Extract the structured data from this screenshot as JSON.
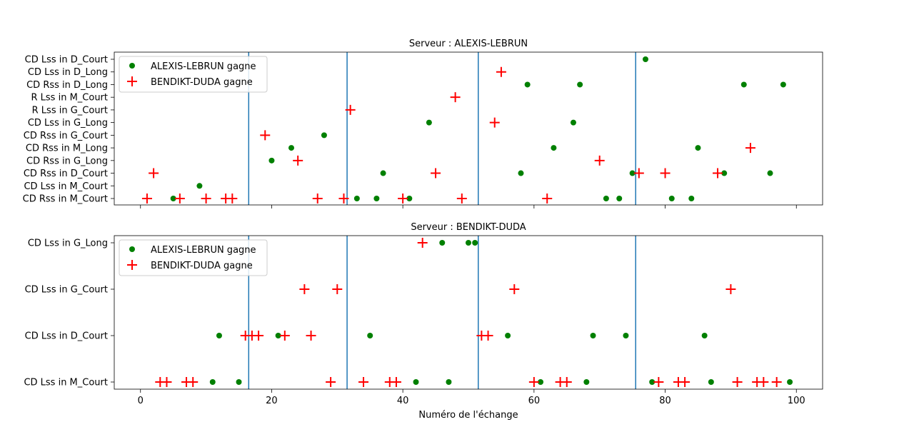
{
  "chart_data": [
    {
      "type": "scatter",
      "title": "Serveur : ALEXIS-LEBRUN",
      "xlabel": "",
      "xlim": [
        -4,
        104
      ],
      "xticks": [
        0,
        20,
        40,
        60,
        80,
        100
      ],
      "xtick_labels_visible": false,
      "categories": [
        "CD Rss in M_Court",
        "CD Lss in M_Court",
        "CD Rss in D_Court",
        "CD Rss in G_Long",
        "CD Rss in M_Long",
        "CD Rss in G_Court",
        "CD Lss in G_Long",
        "R Lss in G_Court",
        "R Lss in M_Court",
        "CD Rss in D_Long",
        "CD Lss in D_Long",
        "CD Lss in D_Court"
      ],
      "vlines": [
        16.5,
        31.5,
        51.5,
        75.5
      ],
      "vline_color": "#1f77b4",
      "legend_position": "upper-left",
      "series": [
        {
          "name": "ALEXIS-LEBRUN gagne",
          "marker": "circle",
          "color": "#008000",
          "points": [
            [
              5,
              "CD Rss in M_Court"
            ],
            [
              9,
              "CD Lss in M_Court"
            ],
            [
              20,
              "CD Rss in G_Long"
            ],
            [
              23,
              "CD Rss in M_Long"
            ],
            [
              28,
              "CD Rss in G_Court"
            ],
            [
              33,
              "CD Rss in M_Court"
            ],
            [
              36,
              "CD Rss in M_Court"
            ],
            [
              37,
              "CD Rss in D_Court"
            ],
            [
              41,
              "CD Rss in M_Court"
            ],
            [
              44,
              "CD Lss in G_Long"
            ],
            [
              58,
              "CD Rss in D_Court"
            ],
            [
              59,
              "CD Rss in D_Long"
            ],
            [
              63,
              "CD Rss in M_Long"
            ],
            [
              66,
              "CD Lss in G_Long"
            ],
            [
              67,
              "CD Rss in D_Long"
            ],
            [
              71,
              "CD Rss in M_Court"
            ],
            [
              73,
              "CD Rss in M_Court"
            ],
            [
              75,
              "CD Rss in D_Court"
            ],
            [
              77,
              "CD Lss in D_Court"
            ],
            [
              81,
              "CD Rss in M_Court"
            ],
            [
              84,
              "CD Rss in M_Court"
            ],
            [
              85,
              "CD Rss in M_Long"
            ],
            [
              89,
              "CD Rss in D_Court"
            ],
            [
              92,
              "CD Rss in D_Long"
            ],
            [
              96,
              "CD Rss in D_Court"
            ],
            [
              98,
              "CD Rss in D_Long"
            ]
          ]
        },
        {
          "name": "BENDIKT-DUDA gagne",
          "marker": "plus",
          "color": "#ff0000",
          "points": [
            [
              1,
              "CD Rss in M_Court"
            ],
            [
              2,
              "CD Rss in D_Court"
            ],
            [
              6,
              "CD Rss in M_Court"
            ],
            [
              10,
              "CD Rss in M_Court"
            ],
            [
              13,
              "CD Rss in M_Court"
            ],
            [
              14,
              "CD Rss in M_Court"
            ],
            [
              19,
              "CD Rss in G_Court"
            ],
            [
              24,
              "CD Rss in G_Long"
            ],
            [
              27,
              "CD Rss in M_Court"
            ],
            [
              31,
              "CD Rss in M_Court"
            ],
            [
              32,
              "R Lss in G_Court"
            ],
            [
              40,
              "CD Rss in M_Court"
            ],
            [
              45,
              "CD Rss in D_Court"
            ],
            [
              48,
              "R Lss in M_Court"
            ],
            [
              49,
              "CD Rss in M_Court"
            ],
            [
              54,
              "CD Lss in G_Long"
            ],
            [
              55,
              "CD Lss in D_Long"
            ],
            [
              62,
              "CD Rss in M_Court"
            ],
            [
              70,
              "CD Rss in G_Long"
            ],
            [
              76,
              "CD Rss in D_Court"
            ],
            [
              80,
              "CD Rss in D_Court"
            ],
            [
              88,
              "CD Rss in D_Court"
            ],
            [
              93,
              "CD Rss in M_Long"
            ]
          ]
        }
      ]
    },
    {
      "type": "scatter",
      "title": "Serveur : BENDIKT-DUDA",
      "xlabel": "Numéro de l'échange",
      "xlim": [
        -4,
        104
      ],
      "xticks": [
        0,
        20,
        40,
        60,
        80,
        100
      ],
      "xtick_labels_visible": true,
      "categories": [
        "CD Lss in M_Court",
        "CD Lss in D_Court",
        "CD Lss in G_Court",
        "CD Lss in G_Long"
      ],
      "vlines": [
        16.5,
        31.5,
        51.5,
        75.5
      ],
      "vline_color": "#1f77b4",
      "legend_position": "upper-left",
      "series": [
        {
          "name": "ALEXIS-LEBRUN gagne",
          "marker": "circle",
          "color": "#008000",
          "points": [
            [
              11,
              "CD Lss in M_Court"
            ],
            [
              12,
              "CD Lss in D_Court"
            ],
            [
              15,
              "CD Lss in M_Court"
            ],
            [
              21,
              "CD Lss in D_Court"
            ],
            [
              35,
              "CD Lss in D_Court"
            ],
            [
              42,
              "CD Lss in M_Court"
            ],
            [
              46,
              "CD Lss in G_Long"
            ],
            [
              47,
              "CD Lss in M_Court"
            ],
            [
              50,
              "CD Lss in G_Long"
            ],
            [
              51,
              "CD Lss in G_Long"
            ],
            [
              56,
              "CD Lss in D_Court"
            ],
            [
              61,
              "CD Lss in M_Court"
            ],
            [
              68,
              "CD Lss in M_Court"
            ],
            [
              69,
              "CD Lss in D_Court"
            ],
            [
              74,
              "CD Lss in D_Court"
            ],
            [
              78,
              "CD Lss in M_Court"
            ],
            [
              86,
              "CD Lss in D_Court"
            ],
            [
              87,
              "CD Lss in M_Court"
            ],
            [
              99,
              "CD Lss in M_Court"
            ]
          ]
        },
        {
          "name": "BENDIKT-DUDA gagne",
          "marker": "plus",
          "color": "#ff0000",
          "points": [
            [
              3,
              "CD Lss in M_Court"
            ],
            [
              4,
              "CD Lss in M_Court"
            ],
            [
              7,
              "CD Lss in M_Court"
            ],
            [
              8,
              "CD Lss in M_Court"
            ],
            [
              16,
              "CD Lss in D_Court"
            ],
            [
              17,
              "CD Lss in D_Court"
            ],
            [
              18,
              "CD Lss in D_Court"
            ],
            [
              22,
              "CD Lss in D_Court"
            ],
            [
              25,
              "CD Lss in G_Court"
            ],
            [
              26,
              "CD Lss in D_Court"
            ],
            [
              29,
              "CD Lss in M_Court"
            ],
            [
              30,
              "CD Lss in G_Court"
            ],
            [
              34,
              "CD Lss in M_Court"
            ],
            [
              38,
              "CD Lss in M_Court"
            ],
            [
              39,
              "CD Lss in M_Court"
            ],
            [
              43,
              "CD Lss in G_Long"
            ],
            [
              52,
              "CD Lss in D_Court"
            ],
            [
              53,
              "CD Lss in D_Court"
            ],
            [
              57,
              "CD Lss in G_Court"
            ],
            [
              60,
              "CD Lss in M_Court"
            ],
            [
              64,
              "CD Lss in M_Court"
            ],
            [
              65,
              "CD Lss in M_Court"
            ],
            [
              79,
              "CD Lss in M_Court"
            ],
            [
              82,
              "CD Lss in M_Court"
            ],
            [
              83,
              "CD Lss in M_Court"
            ],
            [
              90,
              "CD Lss in G_Court"
            ],
            [
              91,
              "CD Lss in M_Court"
            ],
            [
              94,
              "CD Lss in M_Court"
            ],
            [
              95,
              "CD Lss in M_Court"
            ],
            [
              97,
              "CD Lss in M_Court"
            ]
          ]
        }
      ]
    }
  ]
}
